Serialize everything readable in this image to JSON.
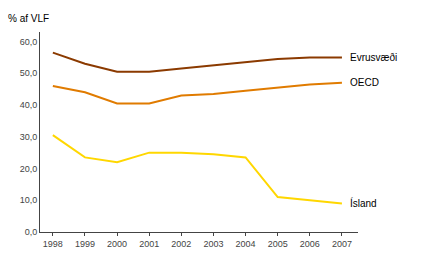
{
  "chart_data": {
    "type": "line",
    "ylabel": "% af VLF",
    "x": [
      1998,
      1999,
      2000,
      2001,
      2002,
      2003,
      2004,
      2005,
      2006,
      2007
    ],
    "series": [
      {
        "name": "Evrusvæði",
        "color": "#8B3A00",
        "values": [
          56.5,
          53.0,
          50.5,
          50.5,
          51.5,
          52.5,
          53.5,
          54.5,
          55.0,
          55.0
        ]
      },
      {
        "name": "OECD",
        "color": "#E07B00",
        "values": [
          46.0,
          44.0,
          40.5,
          40.5,
          43.0,
          43.5,
          44.5,
          45.5,
          46.5,
          47.0
        ]
      },
      {
        "name": "Ísland",
        "color": "#FFD700",
        "values": [
          30.5,
          23.5,
          22.0,
          25.0,
          25.0,
          24.5,
          23.5,
          11.0,
          10.0,
          9.0
        ]
      }
    ],
    "xlim": [
      1997.6,
      2007.5
    ],
    "xticks": [
      1998,
      1999,
      2000,
      2001,
      2002,
      2003,
      2004,
      2005,
      2006,
      2007
    ],
    "ylim": [
      0,
      63
    ],
    "yticks": [
      {
        "value": 0,
        "label": "0,0"
      },
      {
        "value": 10,
        "label": "10,0"
      },
      {
        "value": 20,
        "label": "20,0"
      },
      {
        "value": 30,
        "label": "30,0"
      },
      {
        "value": 40,
        "label": "40,0"
      },
      {
        "value": 50,
        "label": "50,0"
      },
      {
        "value": 60,
        "label": "60,0"
      }
    ],
    "grid": false
  }
}
